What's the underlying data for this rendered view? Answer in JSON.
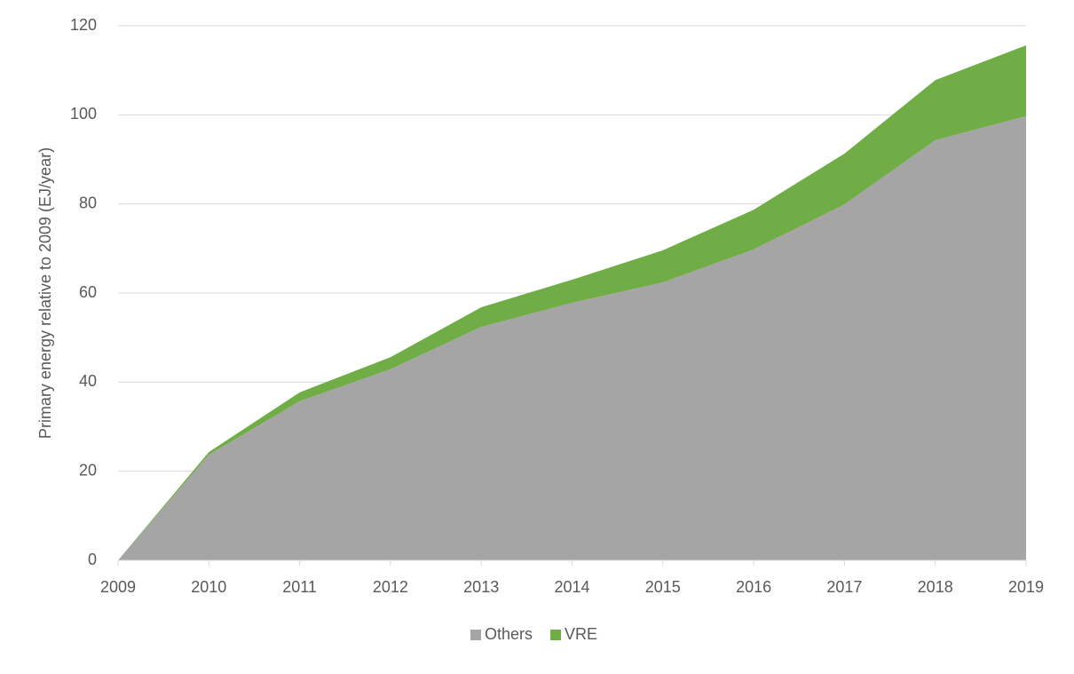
{
  "chart_data": {
    "type": "stacked_area",
    "y_label": "Primary energy relative to 2009 (EJ/year)",
    "categories": [
      "2009",
      "2010",
      "2011",
      "2012",
      "2013",
      "2014",
      "2015",
      "2016",
      "2017",
      "2018",
      "2019"
    ],
    "series": [
      {
        "name": "Others",
        "color": "#a5a5a5",
        "values": [
          0,
          23.7,
          35.7,
          42.9,
          52.4,
          57.8,
          62.4,
          69.8,
          79.9,
          94.3,
          99.7
        ]
      },
      {
        "name": "VRE",
        "color": "#70ad47",
        "values": [
          0,
          0.6,
          2.0,
          2.7,
          4.4,
          5.2,
          7.2,
          8.9,
          11.4,
          13.5,
          15.9
        ]
      }
    ],
    "ylim": [
      0,
      120
    ],
    "yticks": [
      0,
      20,
      40,
      60,
      80,
      100,
      120
    ],
    "grid": true,
    "legend": "bottom"
  }
}
